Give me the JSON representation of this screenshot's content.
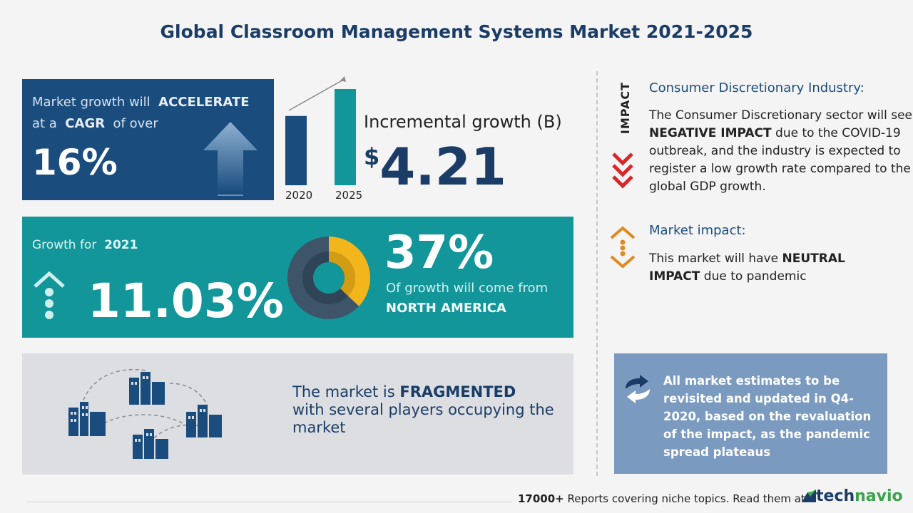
{
  "title": "Global Classroom Management Systems Market 2021-2025",
  "cagr": {
    "line1_prefix": "Market growth will",
    "line1_emph": "ACCELERATE",
    "line2_prefix": "at a",
    "line2_emph": "CAGR",
    "line2_suffix": "of over",
    "value": "16%"
  },
  "incremental": {
    "bars": [
      {
        "year": "2020",
        "level": 0.72
      },
      {
        "year": "2025",
        "level": 1.0
      }
    ],
    "label": "Incremental growth (B)",
    "currency": "$",
    "value": "4.21"
  },
  "growth2021": {
    "label": "Growth for",
    "year": "2021",
    "value": "11.03%"
  },
  "region": {
    "percent": "37%",
    "share": 0.37,
    "desc": "Of growth will come from",
    "name": "NORTH AMERICA"
  },
  "fragmented": {
    "prefix": "The market is",
    "emph": "FRAGMENTED",
    "rest": "with several players occupying the market"
  },
  "impact": {
    "vertical_label": "IMPACT",
    "heading": "Consumer Discretionary Industry:",
    "text_before": "The Consumer Discretionary sector will see",
    "text_emph": "NEGATIVE IMPACT",
    "text_after": "due to the COVID-19 outbreak, and the industry is expected to register a low growth rate compared to the global GDP growth."
  },
  "market_impact": {
    "heading": "Market impact:",
    "text_before": "This market will have",
    "text_emph": "NEUTRAL IMPACT",
    "text_after": "due to pandemic"
  },
  "note": {
    "text": "All market estimates to be revisited and updated in Q4-2020, based on the revaluation of the impact, as the pandemic spread plateaus"
  },
  "footer": {
    "count": "17000+",
    "text": "Reports covering niche topics. Read them at",
    "brand_part1": "tech",
    "brand_part2": "navio"
  },
  "colors": {
    "navy": "#1a4d7e",
    "teal": "#13969a",
    "yellow": "#f2b51b",
    "red": "#d9262b",
    "orange": "#e08a1e"
  }
}
